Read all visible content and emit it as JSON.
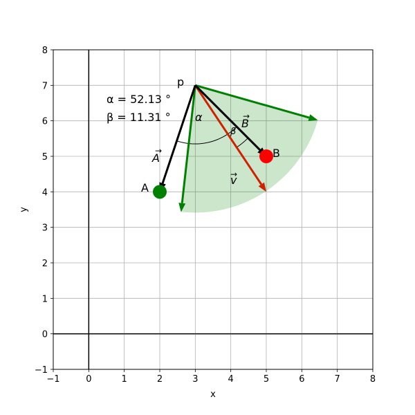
{
  "chart_data": {
    "type": "vector-diagram",
    "xlabel": "x",
    "ylabel": "y",
    "xlim": [
      -1,
      8
    ],
    "ylim": [
      -1,
      8
    ],
    "grid": true,
    "x_ticks": [
      "−1",
      "0",
      "1",
      "2",
      "3",
      "4",
      "5",
      "6",
      "7",
      "8"
    ],
    "y_ticks": [
      "−1",
      "0",
      "1",
      "2",
      "3",
      "4",
      "5",
      "6",
      "7",
      "8"
    ],
    "point_p": {
      "label": "p",
      "x": 3,
      "y": 7
    },
    "point_A": {
      "label": "A",
      "x": 2,
      "y": 4,
      "color": "#008000"
    },
    "point_B": {
      "label": "B",
      "x": 5,
      "y": 5,
      "color": "#ff0000"
    },
    "vector_A_label": "A",
    "vector_B_label": "B",
    "vector_v": {
      "label": "v",
      "end": [
        5,
        4
      ],
      "color": "#cc2200"
    },
    "cone": {
      "color": "#008000",
      "fill_opacity": 0.2,
      "edge1_end": [
        6.45,
        6.02
      ],
      "edge2_end": [
        2.6,
        3.43
      ]
    },
    "alpha_symbol": "α",
    "beta_symbol": "β",
    "alpha_text": "α = 52.13 °",
    "beta_text": "β = 11.31 °"
  }
}
